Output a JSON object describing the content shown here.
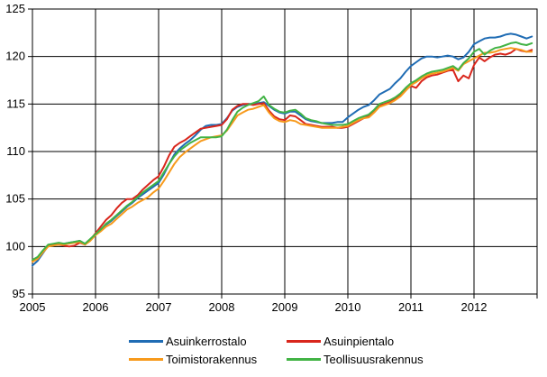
{
  "chart_data": {
    "type": "line",
    "title": "",
    "xlabel": "",
    "ylabel": "",
    "ylim": [
      95,
      125
    ],
    "y_ticks": [
      95,
      100,
      105,
      110,
      115,
      120,
      125
    ],
    "x_tick_labels": [
      "2005",
      "2006",
      "2007",
      "2008",
      "2009",
      "2010",
      "2011",
      "2012"
    ],
    "x_unit": "month",
    "x_range": "2005-01 .. 2012-12",
    "grid": true,
    "frame_color": "#000000",
    "background_color": "#ffffff",
    "legend_position": "bottom",
    "series": [
      {
        "name": "Asuinkerrostalo",
        "color": "#1f6cb4",
        "values": [
          98.0,
          98.5,
          99.3,
          100.1,
          100.2,
          100.3,
          100.3,
          100.4,
          100.5,
          100.6,
          100.3,
          100.7,
          101.3,
          101.8,
          102.3,
          102.7,
          103.2,
          103.7,
          104.2,
          104.6,
          105.1,
          105.5,
          105.9,
          106.3,
          106.7,
          107.6,
          108.7,
          109.7,
          110.3,
          110.8,
          111.2,
          111.7,
          112.3,
          112.7,
          112.8,
          112.8,
          112.9,
          113.5,
          114.3,
          114.7,
          114.9,
          115.0,
          115.0,
          115.1,
          115.2,
          114.8,
          114.4,
          114.1,
          114.0,
          114.2,
          114.2,
          113.8,
          113.4,
          113.2,
          113.1,
          113.0,
          113.0,
          113.0,
          113.1,
          113.1,
          113.6,
          114.0,
          114.4,
          114.7,
          114.9,
          115.4,
          116.0,
          116.3,
          116.6,
          117.2,
          117.7,
          118.4,
          119.0,
          119.4,
          119.8,
          120.0,
          120.0,
          119.9,
          120.0,
          120.1,
          120.0,
          119.7,
          119.9,
          120.5,
          121.3,
          121.6,
          121.9,
          122.0,
          122.0,
          122.1,
          122.3,
          122.4,
          122.3,
          122.1,
          121.9,
          122.1
        ]
      },
      {
        "name": "Asuinpientalo",
        "color": "#d9261c",
        "values": [
          98.5,
          98.8,
          99.5,
          100.1,
          100.2,
          100.2,
          100.1,
          100.0,
          100.1,
          100.4,
          100.2,
          100.7,
          101.4,
          102.1,
          102.8,
          103.3,
          104.0,
          104.6,
          105.0,
          105.0,
          105.4,
          106.0,
          106.5,
          107.0,
          107.4,
          108.4,
          109.6,
          110.5,
          110.9,
          111.2,
          111.6,
          112.0,
          112.4,
          112.5,
          112.6,
          112.7,
          112.8,
          113.4,
          114.4,
          114.8,
          115.0,
          115.0,
          114.9,
          115.0,
          115.1,
          114.3,
          113.7,
          113.4,
          113.3,
          113.8,
          113.7,
          113.3,
          112.9,
          112.8,
          112.7,
          112.6,
          112.6,
          112.6,
          112.5,
          112.5,
          112.6,
          112.9,
          113.2,
          113.5,
          113.7,
          114.2,
          114.8,
          115.0,
          115.2,
          115.6,
          115.9,
          116.5,
          116.9,
          116.7,
          117.4,
          117.8,
          118.0,
          118.1,
          118.3,
          118.5,
          118.6,
          117.4,
          118.0,
          117.7,
          119.1,
          119.9,
          119.5,
          119.9,
          120.2,
          120.3,
          120.2,
          120.4,
          120.8,
          120.6,
          120.5,
          120.7
        ]
      },
      {
        "name": "Toimistorakennus",
        "color": "#f79a1c",
        "values": [
          98.4,
          98.7,
          99.4,
          100.0,
          100.1,
          100.2,
          100.2,
          100.3,
          100.4,
          100.5,
          100.2,
          100.6,
          101.2,
          101.6,
          102.1,
          102.4,
          102.9,
          103.4,
          103.9,
          104.2,
          104.6,
          104.9,
          105.2,
          105.7,
          106.1,
          106.9,
          107.8,
          108.7,
          109.4,
          109.9,
          110.3,
          110.7,
          111.1,
          111.3,
          111.5,
          111.6,
          111.7,
          112.2,
          113.0,
          113.8,
          114.1,
          114.4,
          114.5,
          114.7,
          114.9,
          114.1,
          113.5,
          113.2,
          113.1,
          113.3,
          113.2,
          112.9,
          112.8,
          112.7,
          112.6,
          112.5,
          112.5,
          112.5,
          112.5,
          112.6,
          112.7,
          113.0,
          113.3,
          113.5,
          113.6,
          114.1,
          114.7,
          114.9,
          115.1,
          115.4,
          115.8,
          116.4,
          117.0,
          117.3,
          117.7,
          118.0,
          118.2,
          118.3,
          118.4,
          118.6,
          118.8,
          118.5,
          119.2,
          119.5,
          119.8,
          120.1,
          120.4,
          120.4,
          120.5,
          120.7,
          120.8,
          120.9,
          120.8,
          120.7,
          120.5,
          120.5
        ]
      },
      {
        "name": "Teollisuusrakennus",
        "color": "#42b345",
        "values": [
          98.6,
          98.9,
          99.6,
          100.2,
          100.3,
          100.4,
          100.3,
          100.4,
          100.5,
          100.6,
          100.3,
          100.8,
          101.3,
          101.8,
          102.4,
          102.8,
          103.3,
          103.8,
          104.3,
          104.7,
          105.2,
          105.7,
          106.1,
          106.5,
          106.9,
          107.8,
          108.7,
          109.5,
          110.1,
          110.5,
          110.9,
          111.2,
          111.5,
          111.5,
          111.5,
          111.5,
          111.6,
          112.3,
          113.3,
          114.2,
          114.6,
          114.9,
          115.1,
          115.3,
          115.8,
          114.9,
          114.5,
          114.2,
          114.1,
          114.3,
          114.4,
          114.0,
          113.5,
          113.3,
          113.2,
          113.0,
          112.9,
          112.8,
          112.8,
          112.8,
          112.9,
          113.2,
          113.5,
          113.7,
          113.9,
          114.4,
          115.0,
          115.2,
          115.4,
          115.7,
          116.1,
          116.7,
          117.2,
          117.5,
          117.9,
          118.2,
          118.4,
          118.5,
          118.6,
          118.8,
          119.0,
          118.6,
          119.3,
          119.8,
          120.5,
          120.8,
          120.2,
          120.6,
          120.9,
          121.0,
          121.2,
          121.4,
          121.5,
          121.3,
          121.2,
          121.4
        ]
      }
    ]
  },
  "legend": {
    "items": [
      {
        "label": "Asuinkerrostalo"
      },
      {
        "label": "Asuinpientalo"
      },
      {
        "label": "Toimistorakennus"
      },
      {
        "label": "Teollisuusrakennus"
      }
    ]
  }
}
